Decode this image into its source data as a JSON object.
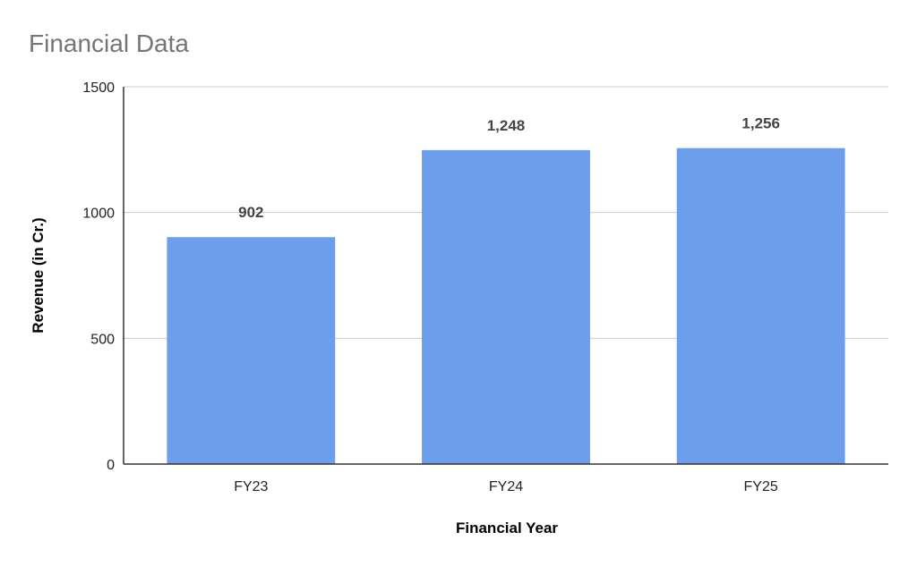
{
  "chart_data": {
    "type": "bar",
    "title": "Financial Data",
    "xlabel": "Financial Year",
    "ylabel": "Revenue (in Cr.)",
    "categories": [
      "FY23",
      "FY24",
      "FY25"
    ],
    "values": [
      902,
      1248,
      1256
    ],
    "data_labels": [
      "902",
      "1,248",
      "1,256"
    ],
    "ylim": [
      0,
      1500
    ],
    "yticks": [
      0,
      500,
      1000,
      1500
    ],
    "ytick_labels": [
      "0",
      "500",
      "1000",
      "1500"
    ],
    "grid": true,
    "legend": "none",
    "colors": {
      "bar": "#6d9eeb",
      "grid": "#cccccc",
      "axis": "#333333"
    }
  }
}
